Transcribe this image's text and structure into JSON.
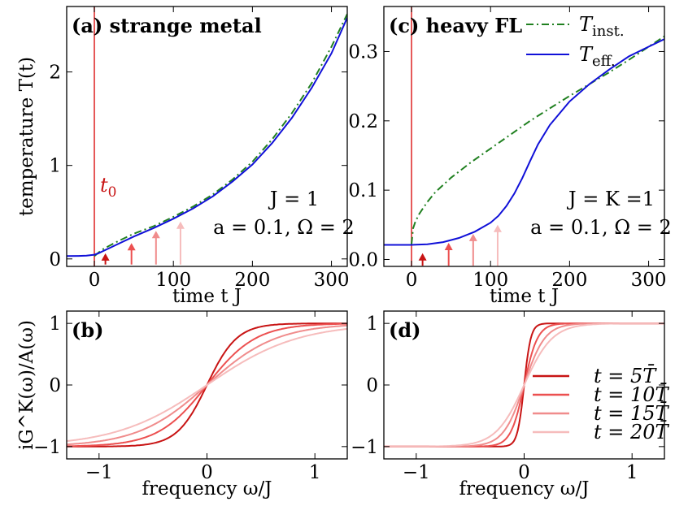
{
  "chart_data": [
    {
      "id": "a",
      "type": "line",
      "title": "(a)  strange metal",
      "xlabel": "time t J",
      "ylabel": "temperature T(t)",
      "xlim": [
        -35,
        320
      ],
      "ylim": [
        -0.08,
        2.7
      ],
      "xticks": [
        0,
        100,
        200,
        300
      ],
      "yticks": [
        0,
        1,
        2
      ],
      "vline": {
        "x": 0,
        "label": "t0",
        "color": "#e03030"
      },
      "annotation": {
        "line1": "J = 1",
        "line2": "a = 0.1, Ω = 2"
      },
      "arrows": [
        {
          "x": 14,
          "y_base": -0.06,
          "y_tip": 0.06,
          "color": "#c81414"
        },
        {
          "x": 47,
          "y_base": -0.06,
          "y_tip": 0.17,
          "color": "#ec5050"
        },
        {
          "x": 78,
          "y_base": -0.06,
          "y_tip": 0.3,
          "color": "#f08c8c"
        },
        {
          "x": 109,
          "y_base": -0.06,
          "y_tip": 0.4,
          "color": "#f6bcbc"
        }
      ],
      "series": [
        {
          "name": "T_inst.",
          "style": "dashdot",
          "color": "#208020",
          "x": [
            0,
            10,
            30,
            50,
            75,
            100,
            125,
            150,
            175,
            200,
            225,
            250,
            275,
            300,
            320
          ],
          "y": [
            0.03,
            0.1,
            0.19,
            0.27,
            0.35,
            0.45,
            0.56,
            0.69,
            0.85,
            1.04,
            1.28,
            1.56,
            1.88,
            2.27,
            2.62
          ]
        },
        {
          "name": "T_eff.",
          "style": "solid",
          "color": "#1010d8",
          "x": [
            -35,
            -20,
            -10,
            0,
            5,
            10,
            20,
            30,
            50,
            75,
            100,
            125,
            150,
            175,
            200,
            225,
            250,
            275,
            300,
            320
          ],
          "y": [
            0.03,
            0.032,
            0.035,
            0.045,
            0.06,
            0.08,
            0.12,
            0.16,
            0.24,
            0.33,
            0.43,
            0.54,
            0.67,
            0.83,
            1.01,
            1.24,
            1.51,
            1.83,
            2.2,
            2.58
          ]
        }
      ]
    },
    {
      "id": "c",
      "type": "line",
      "title": "(c)  heavy FL",
      "xlabel": "time t J",
      "ylabel": "",
      "xlim": [
        -35,
        320
      ],
      "ylim": [
        -0.01,
        0.365
      ],
      "xticks": [
        0,
        100,
        200,
        300
      ],
      "yticks": [
        0.0,
        0.1,
        0.2,
        0.3
      ],
      "vline": {
        "x": 0,
        "label": "",
        "color": "#e03030"
      },
      "annotation": {
        "line1": "J = K =1",
        "line2": "a = 0.1, Ω = 2"
      },
      "arrows": [
        {
          "x": 14,
          "y_base": -0.009,
          "y_tip": 0.009,
          "color": "#c81414"
        },
        {
          "x": 47,
          "y_base": -0.009,
          "y_tip": 0.024,
          "color": "#ec5050"
        },
        {
          "x": 78,
          "y_base": -0.009,
          "y_tip": 0.037,
          "color": "#f08c8c"
        },
        {
          "x": 109,
          "y_base": -0.009,
          "y_tip": 0.05,
          "color": "#f6bcbc"
        }
      ],
      "series": [
        {
          "name": "T_inst.",
          "style": "dashdot",
          "color": "#208020",
          "x": [
            0,
            2,
            5,
            10,
            20,
            30,
            50,
            75,
            100,
            125,
            150,
            175,
            200,
            225,
            250,
            275,
            300,
            320
          ],
          "y": [
            0.022,
            0.045,
            0.055,
            0.066,
            0.083,
            0.097,
            0.118,
            0.14,
            0.16,
            0.18,
            0.2,
            0.218,
            0.236,
            0.253,
            0.27,
            0.288,
            0.307,
            0.322
          ]
        },
        {
          "name": "T_eff.",
          "style": "solid",
          "color": "#1010d8",
          "x": [
            -35,
            0,
            20,
            40,
            60,
            80,
            100,
            110,
            120,
            130,
            140,
            150,
            160,
            175,
            200,
            225,
            250,
            275,
            300,
            320
          ],
          "y": [
            0.021,
            0.021,
            0.022,
            0.025,
            0.031,
            0.04,
            0.053,
            0.063,
            0.077,
            0.095,
            0.117,
            0.142,
            0.166,
            0.194,
            0.228,
            0.253,
            0.274,
            0.293,
            0.307,
            0.318
          ]
        }
      ],
      "legend": {
        "placement": "top-right",
        "entries": [
          {
            "label_main": "T",
            "label_sub": "inst.",
            "style": "dashdot",
            "color": "#208020"
          },
          {
            "label_main": "T",
            "label_sub": "eff.",
            "style": "solid",
            "color": "#1010d8"
          }
        ]
      }
    },
    {
      "id": "b",
      "type": "line",
      "title": "(b)",
      "xlabel": "frequency ω/J",
      "ylabel": "iG^K(ω)/A(ω)",
      "xlim": [
        -1.3,
        1.3
      ],
      "ylim": [
        -1.2,
        1.2
      ],
      "xticks": [
        -1,
        0,
        1
      ],
      "yticks": [
        -1,
        0,
        1
      ],
      "series": [
        {
          "name": "t = 5T̄",
          "color": "#c81414",
          "func": "tanh",
          "scale": 3.6
        },
        {
          "name": "t = 10T̄",
          "color": "#ec5050",
          "func": "tanh",
          "scale": 2.2
        },
        {
          "name": "t = 15T̄",
          "color": "#f08c8c",
          "func": "tanh",
          "scale": 1.55
        },
        {
          "name": "t = 20T̄",
          "color": "#f6bcbc",
          "func": "tanh",
          "scale": 1.18
        }
      ]
    },
    {
      "id": "d",
      "type": "line",
      "title": "(d)",
      "xlabel": "frequency ω/J",
      "ylabel": "",
      "xlim": [
        -1.3,
        1.3
      ],
      "ylim": [
        -1.2,
        1.2
      ],
      "xticks": [
        -1,
        0,
        1
      ],
      "yticks": [
        -1,
        0,
        1
      ],
      "series": [
        {
          "name": "t = 5T̄",
          "color": "#c81414",
          "func": "tanh",
          "scale": 16
        },
        {
          "name": "t = 10T̄",
          "color": "#ec5050",
          "func": "tanh",
          "scale": 8
        },
        {
          "name": "t = 15T̄",
          "color": "#f08c8c",
          "func": "tanh",
          "scale": 5.2
        },
        {
          "name": "t = 20T̄",
          "color": "#f6bcbc",
          "func": "tanh",
          "scale": 3.8
        }
      ],
      "legend": {
        "placement": "right",
        "entries": [
          {
            "label": "t = 5T̄",
            "color": "#c81414"
          },
          {
            "label": "t = 10T̄",
            "color": "#ec5050"
          },
          {
            "label": "t = 15T̄",
            "color": "#f08c8c"
          },
          {
            "label": "t = 20T̄",
            "color": "#f6bcbc"
          }
        ]
      }
    }
  ]
}
